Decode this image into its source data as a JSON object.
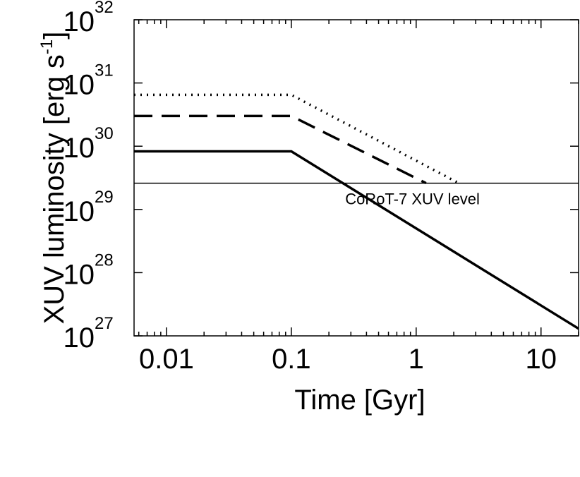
{
  "chart_data": {
    "type": "line",
    "xscale": "log",
    "yscale": "log",
    "xlabel": "Time [Gyr]",
    "ylabel": "XUV luminosity  [erg s",
    "ylabel_sup": "-1",
    "ylabel_close": "]",
    "xlim": [
      0.0055,
      20
    ],
    "ylim": [
      1e+27,
      1e+32
    ],
    "xticks": [
      {
        "value": 0.01,
        "label": "0.01"
      },
      {
        "value": 0.1,
        "label": "0.1"
      },
      {
        "value": 1,
        "label": "1"
      },
      {
        "value": 10,
        "label": "10"
      }
    ],
    "yticks": [
      {
        "value": 1e+27,
        "base": "10",
        "exp": "27"
      },
      {
        "value": 1e+28,
        "base": "10",
        "exp": "28"
      },
      {
        "value": 1e+29,
        "base": "10",
        "exp": "29"
      },
      {
        "value": 1e+30,
        "base": "10",
        "exp": "30"
      },
      {
        "value": 1e+31,
        "base": "10",
        "exp": "31"
      },
      {
        "value": 1e+32,
        "base": "10",
        "exp": "32"
      }
    ],
    "series": [
      {
        "style": "dotted",
        "x": [
          0.0055,
          0.1,
          2.2
        ],
        "y": [
          6.5e+30,
          6.5e+30,
          2.6e+29
        ]
      },
      {
        "style": "dashed",
        "x": [
          0.0055,
          0.1,
          1.2
        ],
        "y": [
          3e+30,
          3e+30,
          2.6e+29
        ]
      },
      {
        "style": "solid",
        "x": [
          0.0055,
          0.1,
          20
        ],
        "y": [
          8.3e+29,
          8.3e+29,
          1.3e+27
        ]
      }
    ],
    "reference_line": {
      "y": 2.6e+29,
      "label": "CoRoT-7 XUV level"
    },
    "grid": false,
    "legend": "none"
  }
}
